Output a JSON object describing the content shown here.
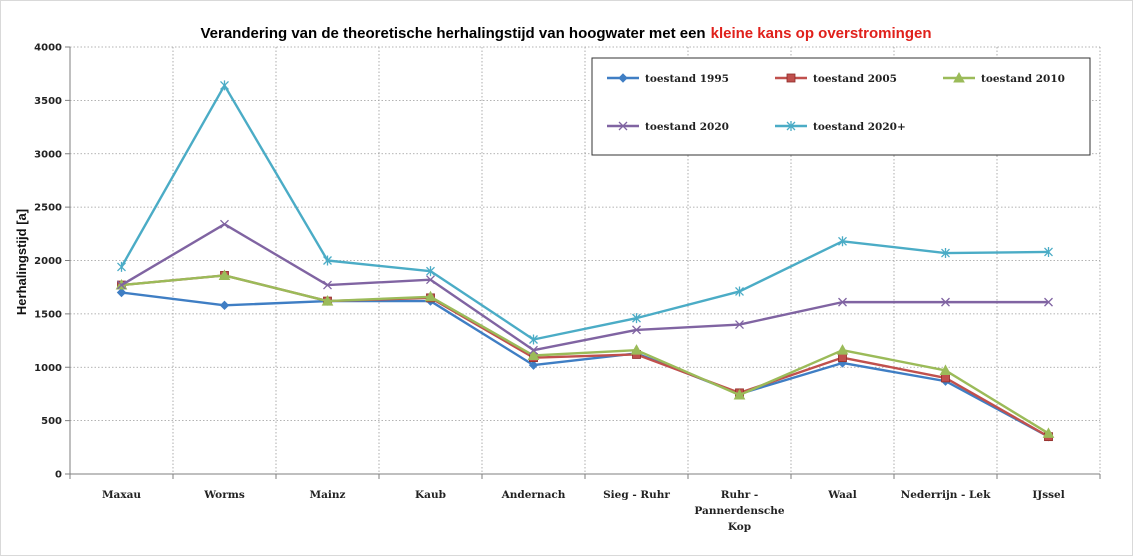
{
  "chart_data": {
    "type": "line",
    "title": "Verandering van de theoretische herhalingstijd van hoogwater met een",
    "title_highlight": "kleine kans op overstromingen",
    "title_color": "#000000",
    "title_highlight_color": "#e0201b",
    "xlabel": "",
    "ylabel": "Herhalingstijd [a]",
    "ylim": [
      0,
      4000
    ],
    "yticks": [
      0,
      500,
      1000,
      1500,
      2000,
      2500,
      3000,
      3500,
      4000
    ],
    "grid": "dotted",
    "legend_position": "top-right",
    "categories": [
      [
        "Maxau"
      ],
      [
        "Worms"
      ],
      [
        "Mainz"
      ],
      [
        "Kaub"
      ],
      [
        "Andernach"
      ],
      [
        "Sieg - Ruhr"
      ],
      [
        "Ruhr -",
        "Pannerdensche",
        "Kop"
      ],
      [
        "Waal"
      ],
      [
        "Nederrijn - Lek"
      ],
      [
        "IJssel"
      ]
    ],
    "series": [
      {
        "name": "toestand 1995",
        "color": "#3f7ec4",
        "marker": "diamond",
        "values": [
          1700,
          1580,
          1620,
          1620,
          1020,
          1130,
          750,
          1040,
          870,
          350
        ]
      },
      {
        "name": "toestand 2005",
        "color": "#c0504d",
        "marker": "square",
        "values": [
          1770,
          1860,
          1620,
          1650,
          1090,
          1120,
          760,
          1090,
          900,
          350
        ]
      },
      {
        "name": "toestand 2010",
        "color": "#9bbb59",
        "marker": "triangle",
        "values": [
          1770,
          1860,
          1620,
          1660,
          1110,
          1160,
          740,
          1160,
          970,
          380
        ]
      },
      {
        "name": "toestand 2020",
        "color": "#8064a2",
        "marker": "x",
        "values": [
          1770,
          2340,
          1770,
          1820,
          1160,
          1350,
          1400,
          1610,
          1610,
          1610
        ]
      },
      {
        "name": "toestand 2020+",
        "color": "#4bacc6",
        "marker": "star",
        "values": [
          1940,
          3640,
          2000,
          1900,
          1260,
          1460,
          1710,
          2180,
          2070,
          2080
        ]
      }
    ]
  }
}
